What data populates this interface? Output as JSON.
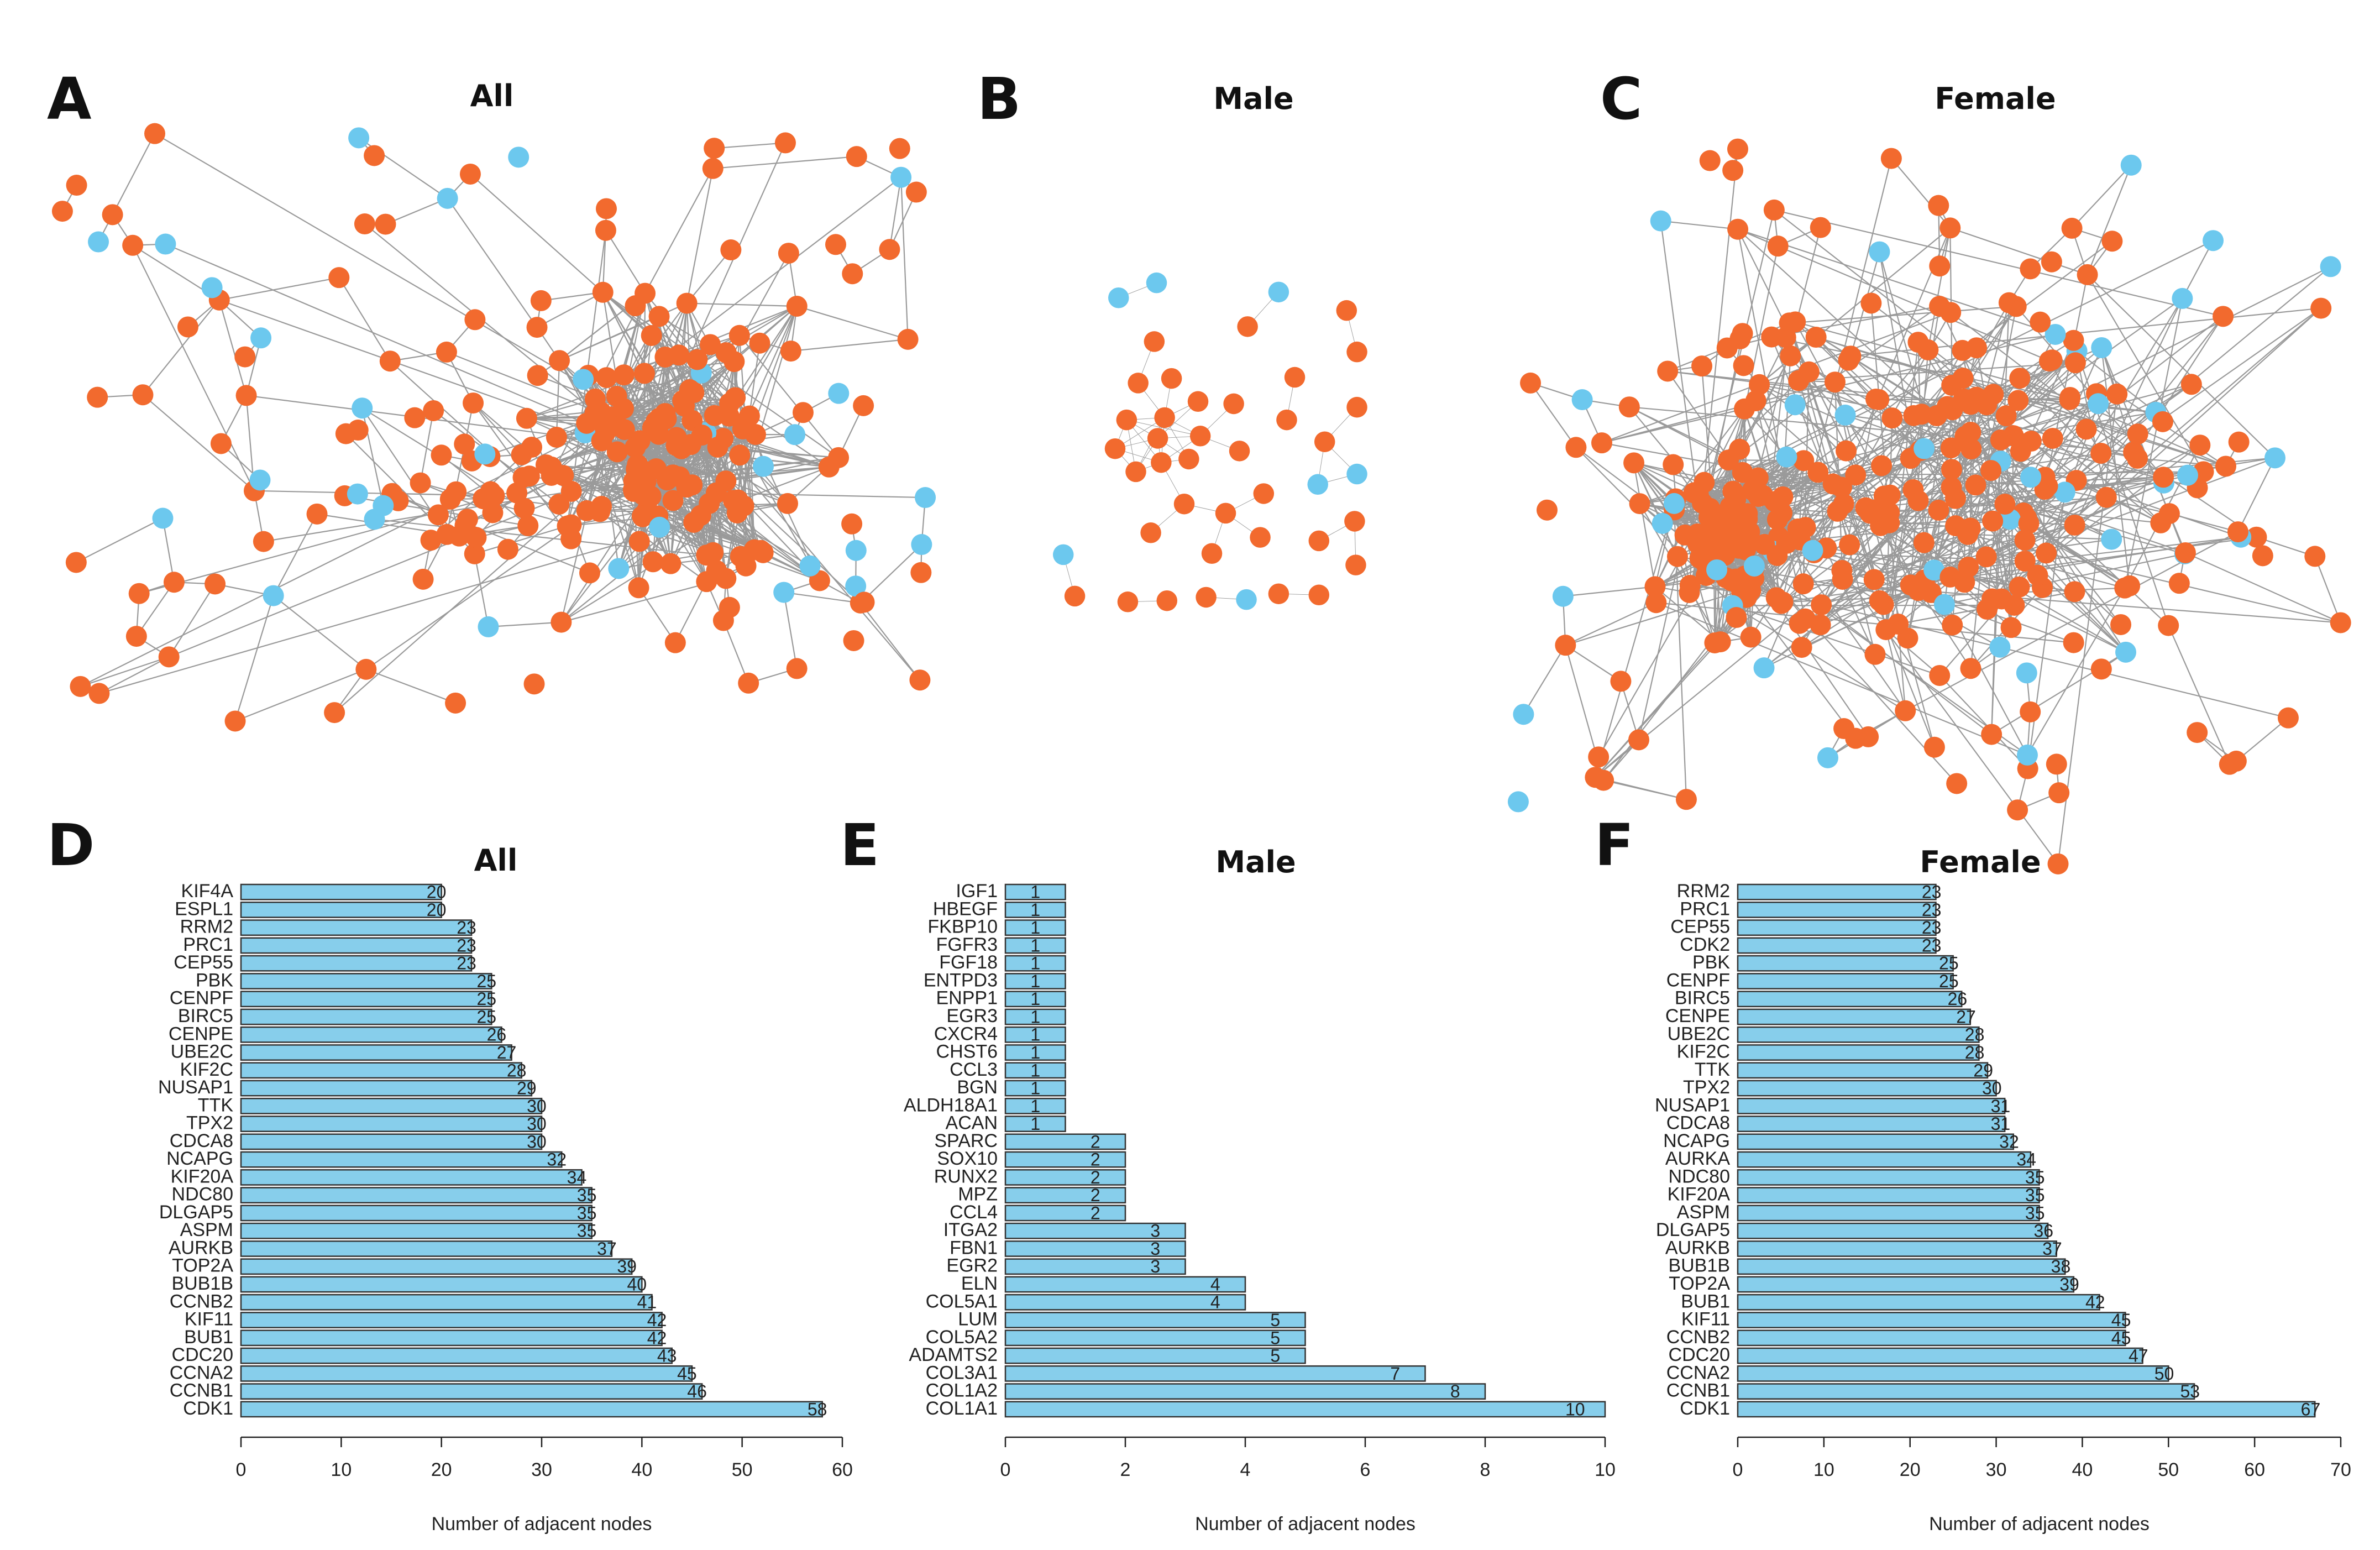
{
  "colors": {
    "up_node": "#F26A2E",
    "down_node": "#6CC8EE",
    "edge": "#9a9a9a",
    "bar_fill": "#87CEEB",
    "bar_stroke": "#333333"
  },
  "panels": {
    "A": {
      "letter": "A",
      "title": "All"
    },
    "B": {
      "letter": "B",
      "title": "Male"
    },
    "C": {
      "letter": "C",
      "title": "Female"
    },
    "D": {
      "letter": "D",
      "title": "All"
    },
    "E": {
      "letter": "E",
      "title": "Male"
    },
    "F": {
      "letter": "F",
      "title": "Female"
    }
  },
  "chart_data": [
    {
      "panel": "D",
      "type": "bar",
      "orientation": "horizontal",
      "title": "All",
      "xlabel": "Number of adjacent nodes",
      "ylabel": "",
      "xlim": [
        0,
        60
      ],
      "xticks": [
        0,
        10,
        20,
        30,
        40,
        50,
        60
      ],
      "categories": [
        "KIF4A",
        "ESPL1",
        "RRM2",
        "PRC1",
        "CEP55",
        "PBK",
        "CENPF",
        "BIRC5",
        "CENPE",
        "UBE2C",
        "KIF2C",
        "NUSAP1",
        "TTK",
        "TPX2",
        "CDCA8",
        "NCAPG",
        "KIF20A",
        "NDC80",
        "DLGAP5",
        "ASPM",
        "AURKB",
        "TOP2A",
        "BUB1B",
        "CCNB2",
        "KIF11",
        "BUB1",
        "CDC20",
        "CCNA2",
        "CCNB1",
        "CDK1"
      ],
      "values": [
        20,
        20,
        23,
        23,
        23,
        25,
        25,
        25,
        26,
        27,
        28,
        29,
        30,
        30,
        30,
        32,
        34,
        35,
        35,
        35,
        37,
        39,
        40,
        41,
        42,
        42,
        43,
        45,
        46,
        58
      ]
    },
    {
      "panel": "E",
      "type": "bar",
      "orientation": "horizontal",
      "title": "Male",
      "xlabel": "Number of adjacent nodes",
      "ylabel": "",
      "xlim": [
        0,
        10
      ],
      "xticks": [
        0,
        2,
        4,
        6,
        8,
        10
      ],
      "categories": [
        "IGF1",
        "HBEGF",
        "FKBP10",
        "FGFR3",
        "FGF18",
        "ENTPD3",
        "ENPP1",
        "EGR3",
        "CXCR4",
        "CHST6",
        "CCL3",
        "BGN",
        "ALDH18A1",
        "ACAN",
        "SPARC",
        "SOX10",
        "RUNX2",
        "MPZ",
        "CCL4",
        "ITGA2",
        "FBN1",
        "EGR2",
        "ELN",
        "COL5A1",
        "LUM",
        "COL5A2",
        "ADAMTS2",
        "COL3A1",
        "COL1A2",
        "COL1A1"
      ],
      "values": [
        1,
        1,
        1,
        1,
        1,
        1,
        1,
        1,
        1,
        1,
        1,
        1,
        1,
        1,
        2,
        2,
        2,
        2,
        2,
        3,
        3,
        3,
        4,
        4,
        5,
        5,
        5,
        7,
        8,
        10
      ]
    },
    {
      "panel": "F",
      "type": "bar",
      "orientation": "horizontal",
      "title": "Female",
      "xlabel": "Number of adjacent nodes",
      "ylabel": "",
      "xlim": [
        0,
        70
      ],
      "xticks": [
        0,
        10,
        20,
        30,
        40,
        50,
        60,
        70
      ],
      "categories": [
        "RRM2",
        "PRC1",
        "CEP55",
        "CDK2",
        "PBK",
        "CENPF",
        "BIRC5",
        "CENPE",
        "UBE2C",
        "KIF2C",
        "TTK",
        "TPX2",
        "NUSAP1",
        "CDCA8",
        "NCAPG",
        "AURKA",
        "NDC80",
        "KIF20A",
        "ASPM",
        "DLGAP5",
        "AURKB",
        "BUB1B",
        "TOP2A",
        "BUB1",
        "KIF11",
        "CCNB2",
        "CDC20",
        "CCNA2",
        "CCNB1",
        "CDK1"
      ],
      "values": [
        23,
        23,
        23,
        23,
        25,
        25,
        26,
        27,
        28,
        28,
        29,
        30,
        31,
        31,
        32,
        34,
        35,
        35,
        35,
        36,
        37,
        38,
        39,
        42,
        45,
        45,
        47,
        50,
        53,
        67
      ]
    }
  ]
}
